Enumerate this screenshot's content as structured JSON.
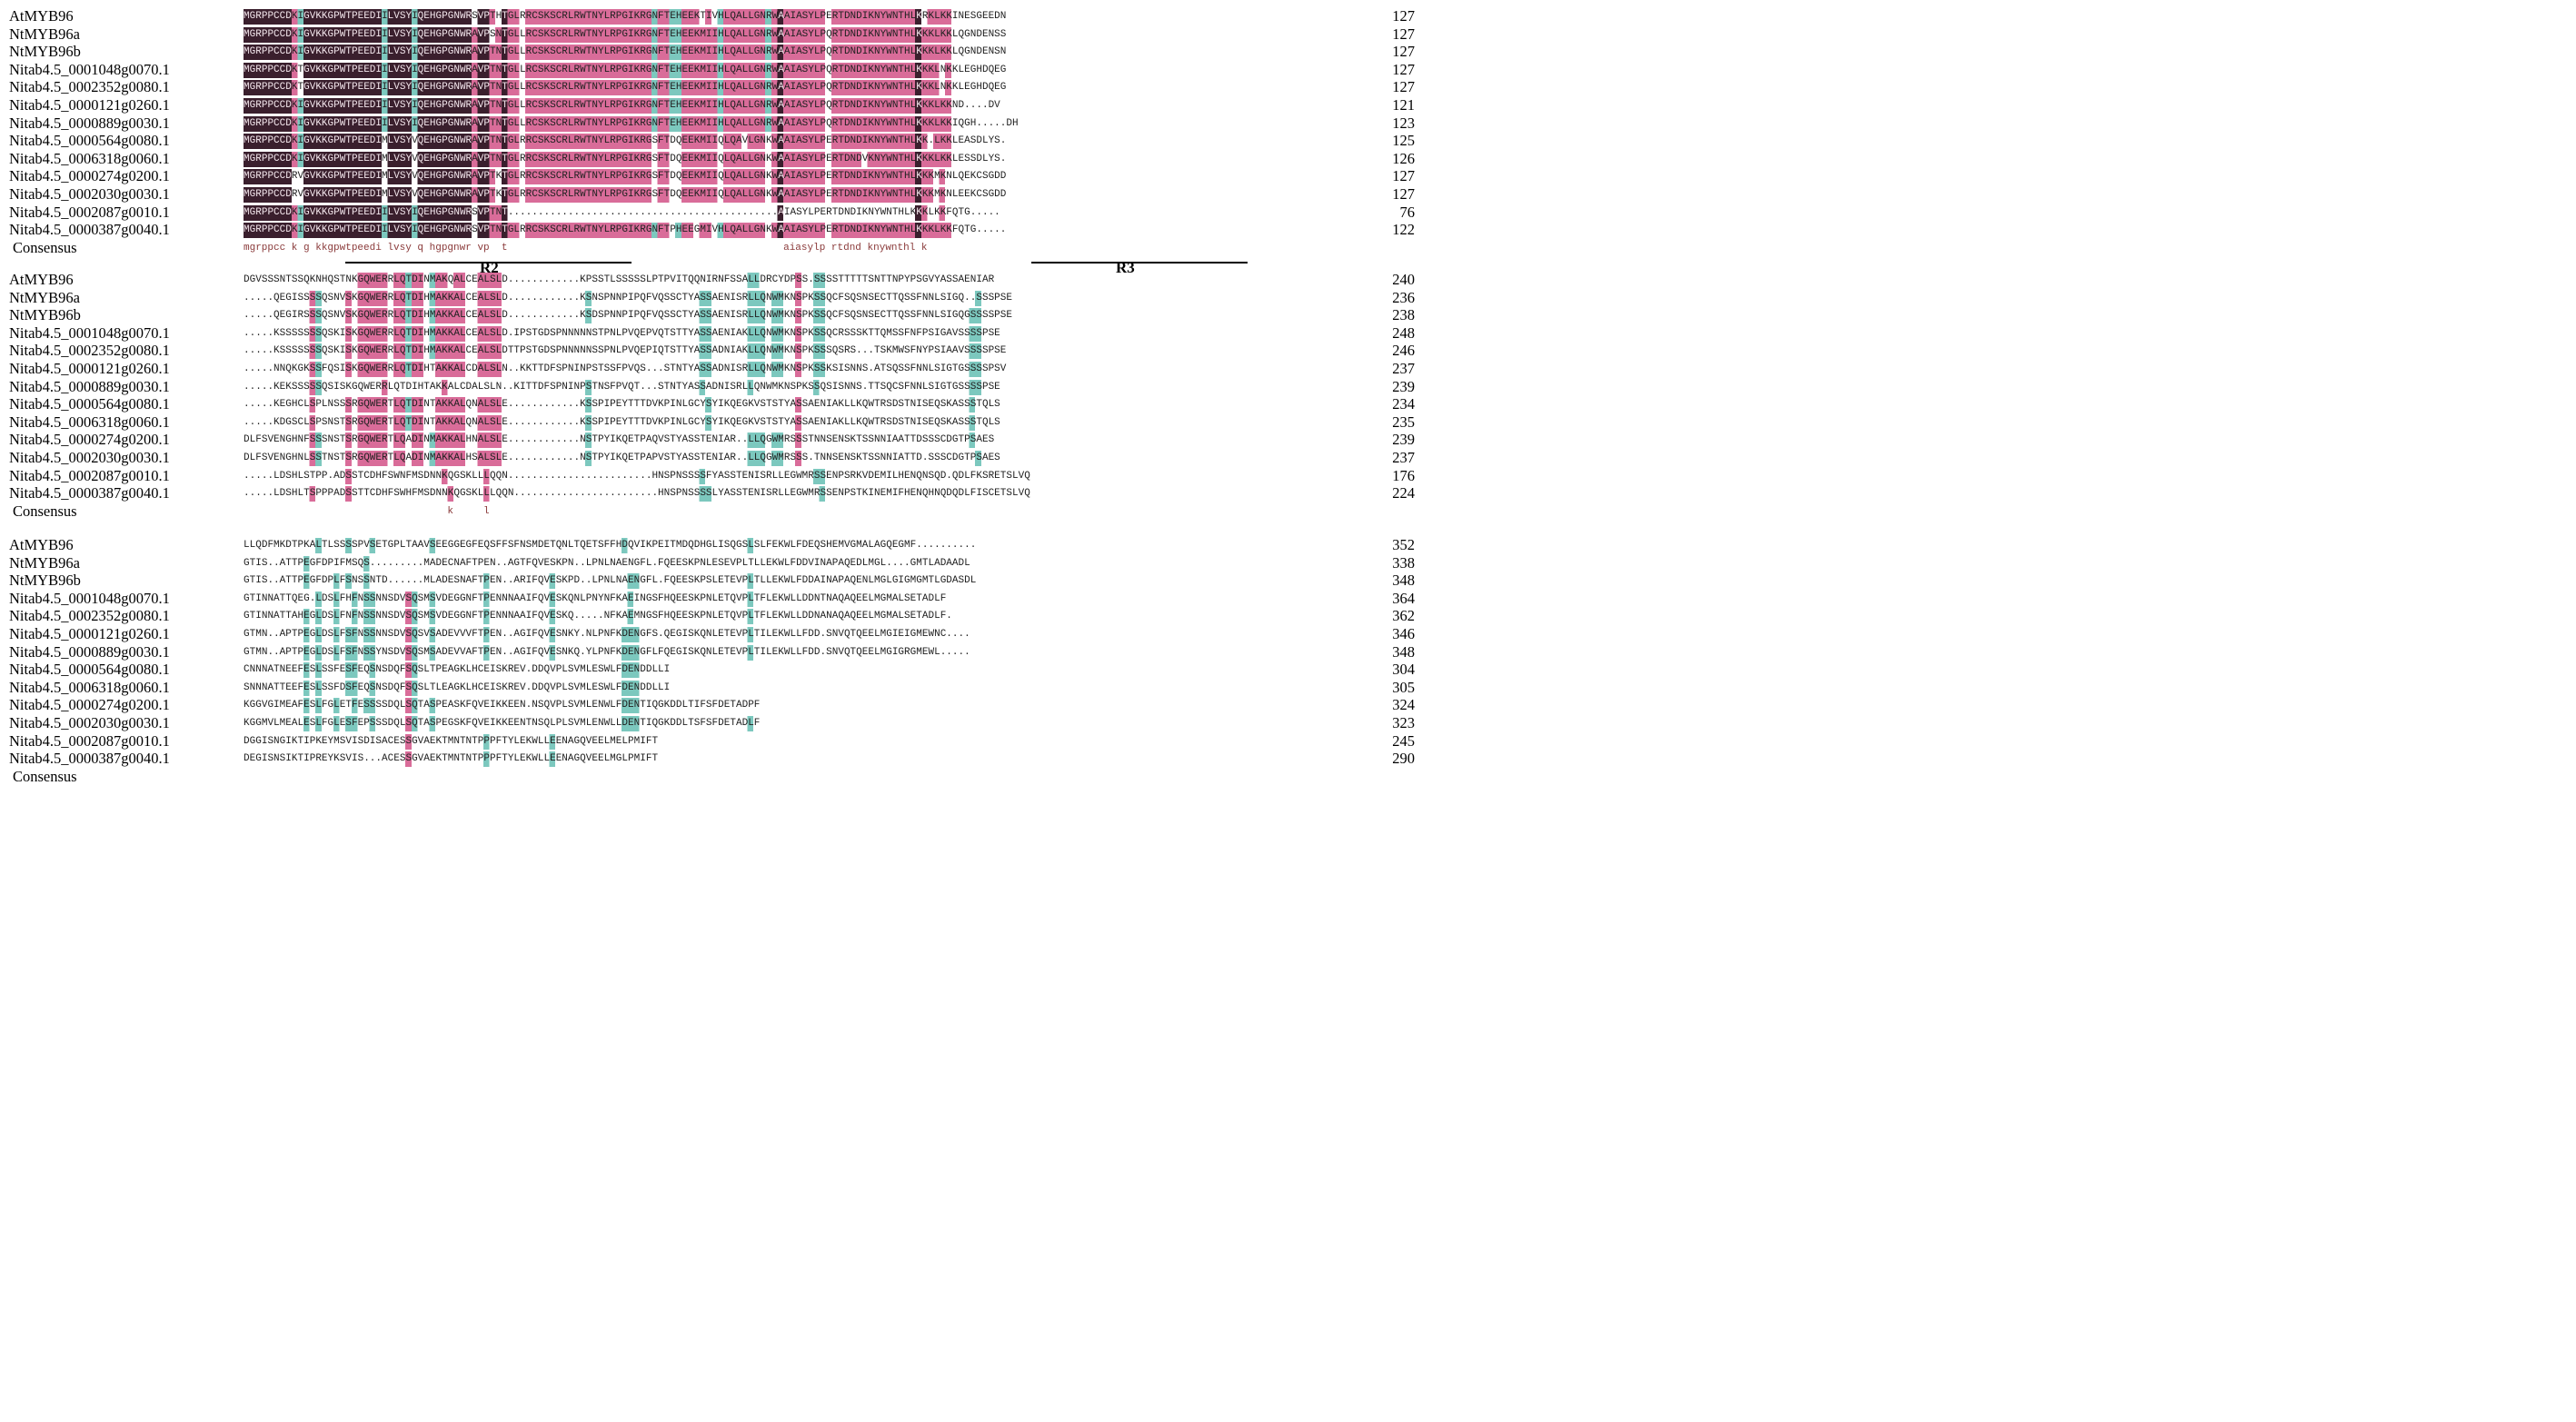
{
  "blocks": [
    {
      "rows": [
        {
          "name": "AtMYB96",
          "seq": "MGRPPCCDKIGVKKGPWTPEEDIILVSYIQEHGPGNWRSVPTHTGLRRCSKSCRLRWTNYLRPGIKRGNFTEHEEKTIVHLQALLGNRWAAIASYLPERTDNDIKNYWNTHLKRKLKKINESGEEDN",
          "num": "127"
        },
        {
          "name": "NtMYB96a",
          "seq": "MGRPPCCDKIGVKKGPWTPEEDIILVSYIQEHGPGNWRAVPSNTGLLRCSKSCRLRWTNYLRPGIKRGNFTEHEEKMIIHLQALLGNRWAAIASYLPQRTDNDIKNYWNTHLKKKLKKLQGNDENSS",
          "num": "127"
        },
        {
          "name": "NtMYB96b",
          "seq": "MGRPPCCDKIGVKKGPWTPEEDIILVSYIQEHGPGNWRAVPTNTGLLRCSKSCRLRWTNYLRPGIKRGNFTEHEEKMIIHLQALLGNRWAAIASYLPQRTDNDIKNYWNTHLKKKLKKLQGNDENSN",
          "num": "127"
        },
        {
          "name": "Nitab4.5_0001048g0070.1",
          "seq": "MGRPPCCDKTGVKKGPWTPEEDIILVSYIQEHGPGNWRAVPTNTGLLRCSKSCRLRWTNYLRPGIKRGNFTEHEEKMIIHLQALLGNRWAAIASYLPQRTDNDIKNYWNTHLKKKLNKKLEGHDQEG",
          "num": "127"
        },
        {
          "name": "Nitab4.5_0002352g0080.1",
          "seq": "MGRPPCCDKTGVKKGPWTPEEDIILVSYIQEHGPGNWRAVPTNTGLLRCSKSCRLRWTNYLRPGIKRGNFTEHEEKMIIHLQALLGNRWAAIASYLPQRTDNDIKNYWNTHLKKKLNKKLEGHDQEG",
          "num": "127"
        },
        {
          "name": "Nitab4.5_0000121g0260.1",
          "seq": "MGRPPCCDKIGVKKGPWTPEEDIILVSYIQEHGPGNWRAVPTNTGLLRCSKSCRLRWTNYLRPGIKRGNFTEHEEKMIIHLQALLGNRWAAIASYLPQRTDNDIKNYWNTHLKKKLKKND....DV",
          "num": "121"
        },
        {
          "name": "Nitab4.5_0000889g0030.1",
          "seq": "MGRPPCCDKIGVKKGPWTPEEDIILVSYIQEHGPGNWRAVPTNTGLLRCSKSCRLRWTNYLRPGIKRGNFTEHEEKMIIHLQALLGNRWAAIASYLPQRTDNDIKNYWNTHLKKKLKKIQGH.....DH",
          "num": "123"
        },
        {
          "name": "Nitab4.5_0000564g0080.1",
          "seq": "MGRPPCCDKIGVKKGPWTPEEDIMLVSYVQEHGPGNWRAVPTNTGLRRCSKSCRLRWTNYLRPGIKRGSFTDQEEKMIIQLQAVLGNKWAAIASYLPERTDNDIKNYWNTHLKK.LKKLEASDLYS.",
          "num": "125"
        },
        {
          "name": "Nitab4.5_0006318g0060.1",
          "seq": "MGRPPCCDKIGVKKGPWTPEEDIMLVSYVQEHGPGNWRAVPTNTGLRRCSKSCRLRWTNYLRPGIKRGSFTDQEEKMIIQLQALLGNKWAAIASYLPERTDNDVKNYWNTHLKKKLKKLESSDLYS.",
          "num": "126"
        },
        {
          "name": "Nitab4.5_0000274g0200.1",
          "seq": "MGRPPCCDRVGVKKGPWTPEEDIMLVSYVQEHGPGNWRAVPTKTGLRRCSKSCRLRWTNYLRPGIKRGSFTDQEEKMIIQLQALLGNKWAAIASYLPERTDNDIKNYWNTHLKKKMKNLQEKCSGDD",
          "num": "127"
        },
        {
          "name": "Nitab4.5_0002030g0030.1",
          "seq": "MGRPPCCDRVGVKKGPWTPEEDIMLVSYVQEHGPGNWRAVPTKTGLRRCSKSCRLRWTNYLRPGIKRGSFTDQEEKMIIQLQALLGNKWAAIASYLPERTDNDIKNYWNTHLKKKMKNLEEKCSGDD",
          "num": "127"
        },
        {
          "name": "Nitab4.5_0002087g0010.1",
          "seq": "MGRPPCCDKIGVKKGPWTPEEDIILVSYIQEHGPGNWRSVPTNT.............................................AIASYLPERTDNDIKNYWNTHLKKKLKKFQTG.....",
          "num": "76"
        },
        {
          "name": "Nitab4.5_0000387g0040.1",
          "seq": "MGRPPCCDKIGVKKGPWTPEEDIILVSYIQEHGPGNWRSVPTNTGLRRCSKSCRLRWTNYLRPGIKRGNFTPHEEGMIVHLQALLGNKWAAIASYLPERTDNDIKNYWNTHLKKKLKKFQTG.....",
          "num": "122"
        }
      ],
      "consensus": {
        "name": "Consensus",
        "seq": "mgrppcc k g kkgpwtpeedi lvsy q hgpgnwr vp  t                                              aiasylp rtdnd knywnthl k"
      },
      "motifs": [
        {
          "label": "R2"
        },
        {
          "label": "R3"
        }
      ]
    },
    {
      "rows": [
        {
          "name": "AtMYB96",
          "seq": "DGVSSSNTSSQKNHQSTNKGQWERRLQTDINMAKQALCEALSLD............KPSSTLSSSSSLPTPVITQQNIRNFSSALLDRCYDPSS.SSSSTTTTTSNTTNPYPSGVYASSAENIAR",
          "num": "240"
        },
        {
          "name": "NtMYB96a",
          "seq": ".....QEGISSSSQSNVSKGQWERRLQTDIHMAKKALCEALSLD............KSNSPNNPIPQFVQSSCTYASSAENISRLLQNWMKNSPKSSQCFSQSNSECTTQSSFNNLSIGQ..SSSPSE",
          "num": "236"
        },
        {
          "name": "NtMYB96b",
          "seq": ".....QEGIRSSSQSNVSKGQWERRLQTDIHMAKKALCEALSLD............KSDSPNNPIPQFVQSSCTYASSAENISRLLQNWMKNSPKSSQCFSQSNSECTTQSSFNNLSIGQGSSSSPSE",
          "num": "238"
        },
        {
          "name": "Nitab4.5_0001048g0070.1",
          "seq": ".....KSSSSSSSQSKISKGQWERRLQTDIHMAKKALCEALSLD.IPSTGDSPNNNNNSTPNLPVQEPVQTSTTYASSAENIAKLLQNWMKNSPKSSQCRSSSKTTQMSSFNFPSIGAVSSSSPSE",
          "num": "248"
        },
        {
          "name": "Nitab4.5_0002352g0080.1",
          "seq": ".....KSSSSSSSQSKISKGQWERRLQTDIHMAKKALCEALSLDTTPSTGDSPNNNNNSSPNLPVQEPIQTSTTYASSADNIAKLLQNWMKNSPKSSSQSRS...TSKMWSFNYPSIAAVSSSSPSE",
          "num": "246"
        },
        {
          "name": "Nitab4.5_0000121g0260.1",
          "seq": ".....NNQKGKSSFQSISKGQWERRLQTDIHTAKKALCDALSLN..KKTTDFSPNINPSTSSFPVQS...STNTYASSADNISRLLQNWMKNSPKSSKSISNNS.ATSQSSFNNLSIGTGSSSSPSV",
          "num": "237"
        },
        {
          "name": "Nitab4.5_0000889g0030.1",
          "seq": ".....KEKSSSSSQSISKGQWERRLQTDIHTAKKALCDALSLN..KITTDFSPNINPSTNSFPVQT...STNTYASSADNISRLLQNWMKNSPKSSQSISNNS.TTSQCSFNNLSIGTGSSSSPSE",
          "num": "239"
        },
        {
          "name": "Nitab4.5_0000564g0080.1",
          "seq": ".....KEGHCLSPLNSSSRGQWERTLQTDINTAKKALQNALSLE............KSSPIPEYTTTDVKPINLGCYSYIKQEGKVSTSTYASSAENIAKLLKQWTRSDSTNISEQSKASSSTQLS",
          "num": "234"
        },
        {
          "name": "Nitab4.5_0006318g0060.1",
          "seq": ".....KDGSCLSPSNSTSRGQWERTLQTDINTAKKALQNALSLE............KSSPIPEYTTTDVKPINLGCYSYIKQEGKVSTSTYASSAENIAKLLKQWTRSDSTNISEQSKASSSTQLS",
          "num": "235"
        },
        {
          "name": "Nitab4.5_0000274g0200.1",
          "seq": "DLFSVENGHNFSSSNSTSRGQWERTLQADINMAKKALHNALSLE............NSTPYIKQETPAQVSTYASSTENIAR..LLQGWMRSSSTNNSENSKTSSNNIAATTDSSSCDGTPSAES",
          "num": "239"
        },
        {
          "name": "Nitab4.5_0002030g0030.1",
          "seq": "DLFSVENGHNLSSTNSTSRGQWERTLQADINMAKKALHSALSLE............NSTPYIKQETPAPVSTYASSTENIAR..LLQGWMRSSS.TNNSENSKTSSNNIATTD.SSSCDGTPSAES",
          "num": "237"
        },
        {
          "name": "Nitab4.5_0002087g0010.1",
          "seq": ".....LDSHLSTPP.ADSSTCDHFSWNFMSDNNKQGSKLLLQQN........................HNSPNSSSSFYASSTENISRLLEGWMRSSENPSRKVDEMILHENQNSQD.QDLFKSRETSLVQ",
          "num": "176"
        },
        {
          "name": "Nitab4.5_0000387g0040.1",
          "seq": ".....LDSHLTSPPPADSSTTCDHFSWHFMSDNNKQGSKLLLQQN........................HNSPNSSSSLYASSTENISRLLEGWMRSSENPSTKINEMIFHENQHNQDQDLFISCETSLVQ",
          "num": "224"
        }
      ],
      "consensus": {
        "name": "Consensus",
        "seq": "                                  k     l"
      }
    },
    {
      "rows": [
        {
          "name": "AtMYB96",
          "seq": "LLQDFMKDTPKALTLSSSSPVSETGPLTAAVSEEGGEGFEQSFFSFNSMDETQNLTQETSFFHDQVIKPEITMDQDHGLISQGSLSLFEKWLFDEQSHEMVGMALAGQEGMF..........",
          "num": "352"
        },
        {
          "name": "NtMYB96a",
          "seq": "GTIS..ATTPEGFDPIFMSQS.........MADECNAFTPEN..AGTFQVESKPN..LPNLNAENGFL.FQEESKPNLESEVPLTLLEKWLFDDVINAPAQEDLMGL....GMTLADAADL",
          "num": "338"
        },
        {
          "name": "NtMYB96b",
          "seq": "GTIS..ATTPEGFDPLFSNSSNTD......MLADESNAFTPEN..ARIFQVESKPD..LPNLNAENGFL.FQEESKPSLETEVPLTLLEKWLFDDAINAPAQENLMGLGIGMGMTLGDASDL",
          "num": "348"
        },
        {
          "name": "Nitab4.5_0001048g0070.1",
          "seq": "GTINNATTQEG.LDSLFHFNSSNNSDVSQSMSVDEGGNFTPENNNAAIFQVESKQNLPNYNFKAEINGSFHQEESKPNLETQVPLTFLEKWLLDDNTNAQAQEELMGMALSETADLF",
          "num": "364"
        },
        {
          "name": "Nitab4.5_0002352g0080.1",
          "seq": "GTINNATTAHEGLDSLFNFNSSNNSDVSQSMSVDEGGNFTPENNNAAIFQVESKQ.....NFKAEMNGSFHQEESKPNLETQVPLTFLEKWLLDDNANAQAQEELMGMALSETADLF.",
          "num": "362"
        },
        {
          "name": "Nitab4.5_0000121g0260.1",
          "seq": "GTMN..APTPEGLDSLFSFNSSNNSDVSQSVSADEVVVFTPEN..AGIFQVESNKY.NLPNFKDENGFS.QEGISKQNLETEVPLTILEKWLLFDD.SNVQTQEELMGIEIGMEWNC....",
          "num": "346"
        },
        {
          "name": "Nitab4.5_0000889g0030.1",
          "seq": "GTMN..APTPEGLDSLFSFNSSYNSDVSQSMSADEVVAFTPEN..AGIFQVESNKQ.YLPNFKDENGFLFQEGISKQNLETEVPLTILEKWLLFDD.SNVQTQEELMGIGRGMEWL.....",
          "num": "348"
        },
        {
          "name": "Nitab4.5_0000564g0080.1",
          "seq": "CNNNATNEEFESLSSFESFEQSNSDQFSQSLTPEAGKLHCEISKREV.DDQVPLSVMLESWLFDENDDLLI",
          "num": "304"
        },
        {
          "name": "Nitab4.5_0006318g0060.1",
          "seq": "SNNNATTEEFESLSSFDSFEQSNSDQFSQSLTLEAGKLHCEISKREV.DDQVPLSVMLESWLFDENDDLLI",
          "num": "305"
        },
        {
          "name": "Nitab4.5_0000274g0200.1",
          "seq": "KGGVGIMEAFESLFGLETFESSSSDQLSQTASPEASKFQVEIKKEEN.NSQVPLSVMLENWLFDENTIQGKDDLTIFSFDETADPF",
          "num": "324"
        },
        {
          "name": "Nitab4.5_0002030g0030.1",
          "seq": "KGGMVLMEALESLFGLESFEPSSSDQLSQTASPEGSKFQVEIKKEENTNSQLPLSVMLENWLLDENTIQGKDDLTSFSFDETADLF",
          "num": "323"
        },
        {
          "name": "Nitab4.5_0002087g0010.1",
          "seq": "DGGISNGIKTIPKEYMSVISDISACESSGVAEKTMNTNTPPPFTYLEKWLLEENAGQVEELMELPMIFT",
          "num": "245"
        },
        {
          "name": "Nitab4.5_0000387g0040.1",
          "seq": "DEGISNSIKTIPREYKSVIS...ACESSGVAEKTMNTNTPPPFTYLEKWLLEENAGQVEELMGLPMIFT",
          "num": "290"
        }
      ],
      "consensus": {
        "name": "Consensus",
        "seq": ""
      }
    }
  ],
  "colors": {
    "identical": "#3a1f2d",
    "high": "#d96c99",
    "medium": "#7cc8be",
    "text_dark_bg": "#f3e6ec",
    "consensus_text": "#8a3a3a"
  }
}
